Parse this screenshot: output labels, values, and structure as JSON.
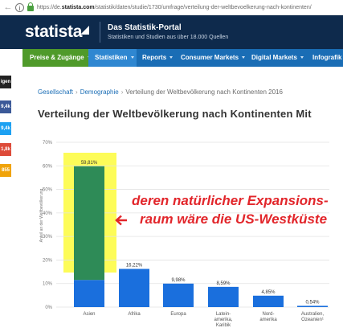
{
  "browser": {
    "nav_back": "←",
    "url_prefix": "https://de.",
    "url_domain": "statista.com",
    "url_path": "/statistik/daten/studie/1730/umfrage/verteilung-der-weltbevoelkerung-nach-kontinenten/"
  },
  "header": {
    "logo": "statista",
    "portal_title": "Das Statistik-Portal",
    "portal_subtitle": "Statistiken und Studien aus über 18.000 Quellen"
  },
  "nav": {
    "items": [
      {
        "label": "Preise & Zugänge"
      },
      {
        "label": "Statistiken"
      },
      {
        "label": "Reports"
      },
      {
        "label": "Consumer Markets"
      },
      {
        "label": "Digital Markets"
      },
      {
        "label": "Infografik"
      }
    ]
  },
  "share": {
    "top_label": "igen",
    "counts": [
      "9,4k",
      "9,4k",
      "1,8k",
      "855"
    ],
    "colors": [
      "#3b5998",
      "#1da1f2",
      "#dd4b39",
      "#f0a30a"
    ]
  },
  "breadcrumb": {
    "items": [
      "Gesellschaft",
      "Demographie"
    ],
    "current": "Verteilung der Weltbevölkerung nach Kontinenten 2016"
  },
  "page_title": "Verteilung der Weltbevölkerung nach Kontinenten Mit",
  "annotation": {
    "line1": "deren natürlicher Expansions-",
    "line2": "raum wäre die US-Westküste"
  },
  "chart_data": {
    "type": "bar",
    "ylabel": "Anteil an der Weltbevölkerung",
    "ylim": [
      0,
      70
    ],
    "yticks": [
      "0%",
      "10%",
      "20%",
      "30%",
      "40%",
      "50%",
      "60%",
      "70%"
    ],
    "categories": [
      [
        "Asien"
      ],
      [
        "Afrika"
      ],
      [
        "Europa"
      ],
      [
        "Latein-",
        "amerika,",
        "Karibik"
      ],
      [
        "Nord-",
        "amerika"
      ],
      [
        "Australien,",
        "Ozeanien¹"
      ]
    ],
    "values": [
      59.81,
      16.22,
      9.98,
      8.59,
      4.85,
      0.54
    ],
    "value_labels": [
      "59,81%",
      "16,22%",
      "9,98%",
      "8,59%",
      "4,85%",
      "0,54%"
    ],
    "grid": true,
    "colors": {
      "bar": "#1a6fdd",
      "highlight_bar": "#2e8b57",
      "highlight_box": "#fdfb3b"
    }
  }
}
